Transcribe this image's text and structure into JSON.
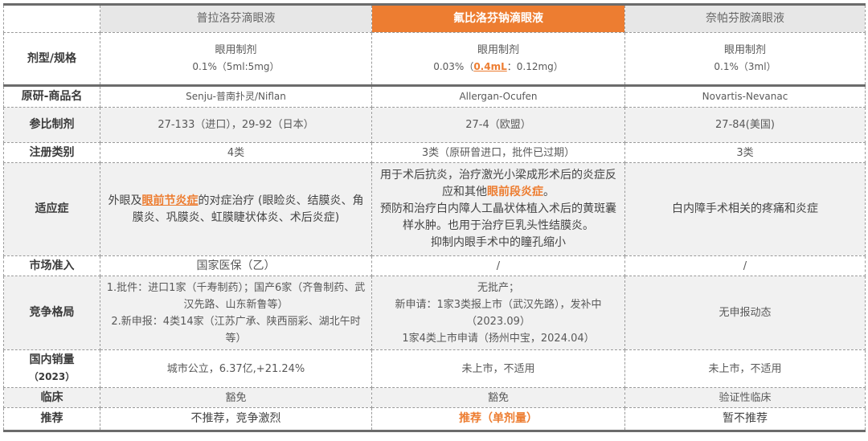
{
  "columns": [
    "普拉洛芬滴眼液",
    "氟比洛芬钠滴眼液",
    "奈帕芬胺滴眼液"
  ],
  "accent": "#ed7d31",
  "rows": {
    "form": {
      "label": "剂型/规格",
      "c1": {
        "l1": "眼用制剂",
        "l2": "0.1%（5ml:5mg）"
      },
      "c2": {
        "l1": "眼用制剂",
        "pre": "0.03%（",
        "hl": "0.4mL",
        "post": "：0.12mg）"
      },
      "c3": {
        "l1": "眼用制剂",
        "l2": "0.1%（3ml）"
      }
    },
    "originator": {
      "label": "原研-商品名",
      "c1": "Senju-普南扑灵/Niflan",
      "c2": "Allergan-Ocufen",
      "c3": "Novartis-Nevanac"
    },
    "reference": {
      "label": "参比制剂",
      "c1": "27-133（进口），29-92（日本）",
      "c2": "27-4（欧盟）",
      "c3": "27-84(美国)"
    },
    "registration": {
      "label": "注册类别",
      "c1": "4类",
      "c2": "3类（原研曾进口，批件已过期）",
      "c3": "3类"
    },
    "indication": {
      "label": "适应症",
      "c1": {
        "pre": "外眼及",
        "hl": "眼前节炎症",
        "post": "的对症治疗 (眼睑炎、结膜炎、角膜炎、巩膜炎、虹膜睫状体炎、术后炎症)"
      },
      "c2": {
        "pre": "用于术后抗炎，治疗激光小梁成形术后的炎症反应和其他",
        "hl": "眼前段炎症",
        "post": "。",
        "l2": "预防和治疗白内障人工晶状体植入术后的黄斑囊样水肿。也用于治疗巨乳头性结膜炎。",
        "l3": "抑制内眼手术中的瞳孔缩小"
      },
      "c3": "白内障手术相关的疼痛和炎症"
    },
    "market": {
      "label": "市场准入",
      "c1": "国家医保（乙）",
      "c2": "/",
      "c3": "/"
    },
    "competition": {
      "label": "竞争格局",
      "c1": {
        "l1": "1.批件：进口1家（千寿制药）；国产6家（齐鲁制药、武汉先路、山东新鲁等）",
        "l2": "2.新申报：4类14家（江苏广承、陕西丽彩、湖北午时等）"
      },
      "c2": {
        "l1": "无批产；",
        "l2": "新申请：1家3类报上市（武汉先路），发补中（2023.09）",
        "l3": "1家4类上市申请（扬州中宝，2024.04）"
      },
      "c3": "无申报动态"
    },
    "sales": {
      "label1": "国内销量",
      "label2": "（2023）",
      "c1": "城市公立，6.37亿,+21.24%",
      "c2": "未上市，不适用",
      "c3": "未上市，不适用"
    },
    "clinical": {
      "label": "临床",
      "c1": "豁免",
      "c2": "豁免",
      "c3": "验证性临床"
    },
    "recommend": {
      "label": "推荐",
      "c1": "不推荐，竞争激烈",
      "c2": "推荐（单剂量）",
      "c3": "暂不推荐"
    }
  }
}
